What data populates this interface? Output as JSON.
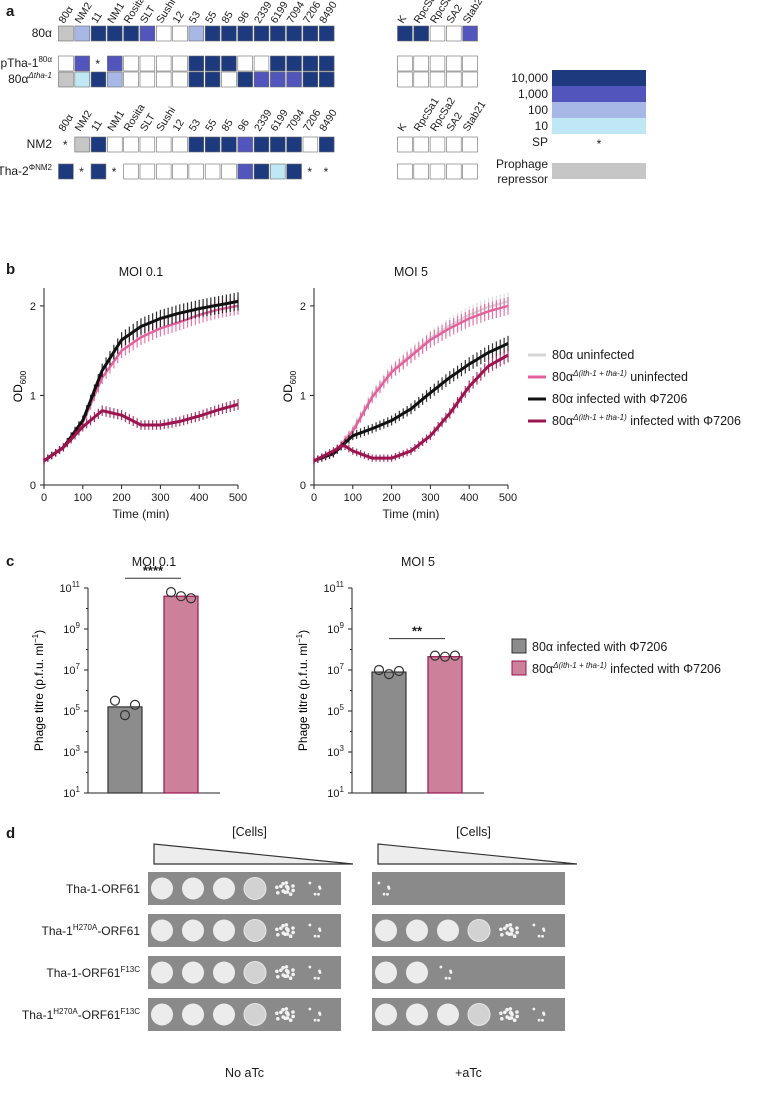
{
  "figure": {
    "panels": [
      "a",
      "b",
      "c",
      "d"
    ]
  },
  "colors": {
    "l4": "#1e3a7e",
    "l3": "#5256bc",
    "l2": "#a8b8e6",
    "l1": "#bfe7f4",
    "gray": "#c6c6c6",
    "black": "#111111",
    "pink": "#e2609c",
    "maroon": "#9b1550",
    "lightgray": "#d6d6d6",
    "bar_gray": "#8c8c8c",
    "bar_pink": "#cc8099"
  },
  "panel_a": {
    "phages": [
      "80α",
      "NM2",
      "11",
      "NM1",
      "Rosita",
      "SLT",
      "Sushi",
      "12",
      "53",
      "55",
      "85",
      "96",
      "2339",
      "6199",
      "7094",
      "7206",
      "8490"
    ],
    "extra_phages": [
      "K",
      "RpcSa1",
      "RpcSa2",
      "SA2",
      "Stab21"
    ],
    "group1": {
      "rows": [
        {
          "label": "80α",
          "sup": "",
          "cells": [
            "G",
            "2",
            "4",
            "4",
            "4",
            "3",
            "0",
            "0",
            "2",
            "4",
            "4",
            "4",
            "4",
            "4",
            "4",
            "4",
            "4"
          ],
          "extra": [
            "4",
            "4",
            "0",
            "0",
            "3"
          ]
        },
        {
          "label": "pTha-1",
          "sup": "80α",
          "cells": [
            "0",
            "3",
            "S",
            "3",
            "0",
            "0",
            "0",
            "0",
            "4",
            "4",
            "4",
            "0",
            "0",
            "4",
            "4",
            "4",
            "4"
          ],
          "extra": [
            "0",
            "0",
            "0",
            "0",
            "0"
          ]
        },
        {
          "label": "80α",
          "sup": "Δtha-1",
          "cells": [
            "G",
            "1",
            "4",
            "2",
            "0",
            "0",
            "0",
            "0",
            "4",
            "4",
            "0",
            "4",
            "3",
            "3",
            "3",
            "4",
            "4"
          ],
          "extra": [
            "0",
            "0",
            "0",
            "0",
            "0"
          ]
        }
      ]
    },
    "group2": {
      "rows": [
        {
          "label": "NM2",
          "sup": "",
          "cells": [
            "S",
            "G",
            "4",
            "0",
            "0",
            "0",
            "0",
            "0",
            "4",
            "4",
            "4",
            "3",
            "4",
            "4",
            "4",
            "0",
            "4"
          ],
          "extra": [
            "0",
            "0",
            "0",
            "0",
            "0"
          ]
        },
        {
          "label": "pTha-2",
          "sup": "ΦNM2",
          "cells": [
            "4",
            "S",
            "4",
            "S",
            "0",
            "0",
            "0",
            "0",
            "0",
            "0",
            "0",
            "3",
            "4",
            "1",
            "4",
            "S",
            "S"
          ],
          "extra": [
            "0",
            "0",
            "0",
            "0",
            "0"
          ]
        }
      ]
    },
    "legend": {
      "levels": [
        "10,000",
        "1,000",
        "100",
        "10"
      ],
      "sp_label": "SP",
      "sp_symbol": "*",
      "repressor_label_1": "Prophage",
      "repressor_label_2": "repressor"
    }
  },
  "panel_b": {
    "y_label": "OD",
    "y_label_sub": "600",
    "x_label": "Time (min)",
    "x_ticks": [
      "0",
      "100",
      "200",
      "300",
      "400",
      "500"
    ],
    "y_ticks": [
      "0",
      "1",
      "2"
    ],
    "legend": [
      {
        "text": "80α uninfected",
        "sup": "",
        "tail": ""
      },
      {
        "text": "80α",
        "sup": "Δ(ith-1 + tha-1)",
        "tail": " uninfected"
      },
      {
        "text": "80α infected with Φ7206",
        "sup": "",
        "tail": ""
      },
      {
        "text": "80α",
        "sup": "Δ(ith-1 + tha-1)",
        "tail": " infected with Φ7206"
      }
    ]
  },
  "panel_c": {
    "y_label": "Phage titre (p.f.u. ml",
    "y_label_sup": "−1",
    "y_label_end": ")",
    "y_ticks": [
      "10",
      "10",
      "10",
      "10",
      "10",
      "10"
    ],
    "y_tick_exps": [
      "1",
      "3",
      "5",
      "7",
      "9",
      "11"
    ],
    "legend": [
      {
        "text": "80α infected with Φ7206",
        "sup": "",
        "tail": ""
      },
      {
        "text": "80α",
        "sup": "Δ(ith-1 + tha-1)",
        "tail": " infected with Φ7206"
      }
    ]
  },
  "panel_d": {
    "header": "[Cells]",
    "rows": [
      {
        "label": "Tha-1-ORF61",
        "sup1": "",
        "mid": "",
        "sup2": ""
      },
      {
        "label": "Tha-1",
        "sup1": "H270A",
        "mid": "-ORF61",
        "sup2": ""
      },
      {
        "label": "Tha-1-ORF61",
        "sup1": "",
        "mid": "",
        "sup2": "F13C"
      },
      {
        "label": "Tha-1",
        "sup1": "H270A",
        "mid": "-ORF61",
        "sup2": "F13C"
      }
    ],
    "left_label": "No aTc",
    "right_label": "+aTc",
    "left_spots": [
      [
        4,
        4,
        4,
        3,
        2,
        1
      ],
      [
        4,
        4,
        4,
        3,
        2,
        1
      ],
      [
        4,
        4,
        4,
        3,
        2,
        1
      ],
      [
        4,
        4,
        4,
        3,
        2,
        1
      ]
    ],
    "right_spots": [
      [
        1,
        0,
        0,
        0,
        0,
        0
      ],
      [
        4,
        4,
        4,
        3,
        2,
        1
      ],
      [
        4,
        4,
        1,
        0,
        0,
        0
      ],
      [
        4,
        4,
        4,
        3,
        2,
        1
      ]
    ]
  },
  "chart_data": [
    {
      "type": "line",
      "title": "MOI 0.1",
      "xlabel": "Time (min)",
      "ylabel": "OD600",
      "xlim": [
        0,
        500
      ],
      "ylim": [
        0,
        2.2
      ],
      "series": [
        {
          "name": "80α uninfected",
          "x": [
            0,
            50,
            100,
            150,
            200,
            250,
            300,
            350,
            400,
            450,
            500
          ],
          "y": [
            0.27,
            0.42,
            0.72,
            1.28,
            1.62,
            1.77,
            1.86,
            1.92,
            1.97,
            2.01,
            2.05
          ]
        },
        {
          "name": "80αΔ(ith-1 + tha-1) uninfected",
          "x": [
            0,
            50,
            100,
            150,
            200,
            250,
            300,
            350,
            400,
            450,
            500
          ],
          "y": [
            0.27,
            0.42,
            0.7,
            1.2,
            1.5,
            1.65,
            1.75,
            1.82,
            1.9,
            1.96,
            2.0
          ]
        },
        {
          "name": "80α infected with Φ7206",
          "x": [
            0,
            50,
            100,
            150,
            200,
            250,
            300,
            350,
            400,
            450,
            500
          ],
          "y": [
            0.27,
            0.42,
            0.72,
            1.28,
            1.62,
            1.77,
            1.86,
            1.92,
            1.97,
            2.01,
            2.05
          ]
        },
        {
          "name": "80αΔ(ith-1 + tha-1) infected with Φ7206",
          "x": [
            0,
            50,
            100,
            150,
            200,
            250,
            300,
            350,
            400,
            450,
            500
          ],
          "y": [
            0.27,
            0.42,
            0.65,
            0.83,
            0.78,
            0.67,
            0.67,
            0.71,
            0.77,
            0.84,
            0.9
          ]
        }
      ]
    },
    {
      "type": "line",
      "title": "MOI 5",
      "xlabel": "Time (min)",
      "ylabel": "OD600",
      "xlim": [
        0,
        500
      ],
      "ylim": [
        0,
        2.2
      ],
      "series": [
        {
          "name": "80α uninfected",
          "x": [
            0,
            50,
            100,
            150,
            200,
            250,
            300,
            350,
            400,
            450,
            500
          ],
          "y": [
            0.27,
            0.35,
            0.62,
            1.0,
            1.28,
            1.46,
            1.64,
            1.78,
            1.9,
            1.99,
            2.05
          ]
        },
        {
          "name": "80αΔ(ith-1 + tha-1) uninfected",
          "x": [
            0,
            50,
            100,
            150,
            200,
            250,
            300,
            350,
            400,
            450,
            500
          ],
          "y": [
            0.27,
            0.35,
            0.6,
            0.98,
            1.26,
            1.44,
            1.62,
            1.75,
            1.86,
            1.94,
            2.0
          ]
        },
        {
          "name": "80α infected with Φ7206",
          "x": [
            0,
            50,
            100,
            150,
            200,
            250,
            300,
            350,
            400,
            450,
            500
          ],
          "y": [
            0.27,
            0.35,
            0.55,
            0.63,
            0.72,
            0.85,
            1.03,
            1.2,
            1.35,
            1.48,
            1.58
          ]
        },
        {
          "name": "80αΔ(ith-1 + tha-1) infected with Φ7206",
          "x": [
            0,
            50,
            75,
            100,
            150,
            200,
            250,
            300,
            350,
            400,
            450,
            500
          ],
          "y": [
            0.27,
            0.38,
            0.45,
            0.38,
            0.3,
            0.3,
            0.38,
            0.55,
            0.8,
            1.1,
            1.33,
            1.45
          ]
        }
      ]
    },
    {
      "type": "bar",
      "title": "MOI 0.1",
      "ylabel": "Phage titre (p.f.u. ml−1)",
      "yscale": "log",
      "ylim_log10": [
        1,
        11
      ],
      "categories": [
        "80α infected with Φ7206",
        "80αΔ(ith-1 + tha-1) infected with Φ7206"
      ],
      "values_log10": [
        5.2,
        10.6
      ],
      "points_log10": [
        [
          5.5,
          4.8,
          5.3
        ],
        [
          10.8,
          10.6,
          10.5
        ]
      ],
      "significance": "****"
    },
    {
      "type": "bar",
      "title": "MOI 5",
      "ylabel": "Phage titre (p.f.u. ml−1)",
      "yscale": "log",
      "ylim_log10": [
        1,
        11
      ],
      "categories": [
        "80α infected with Φ7206",
        "80αΔ(ith-1 + tha-1) infected with Φ7206"
      ],
      "values_log10": [
        6.9,
        7.65
      ],
      "points_log10": [
        [
          7.0,
          6.8,
          6.95
        ],
        [
          7.7,
          7.65,
          7.7
        ]
      ],
      "significance": "**"
    }
  ]
}
